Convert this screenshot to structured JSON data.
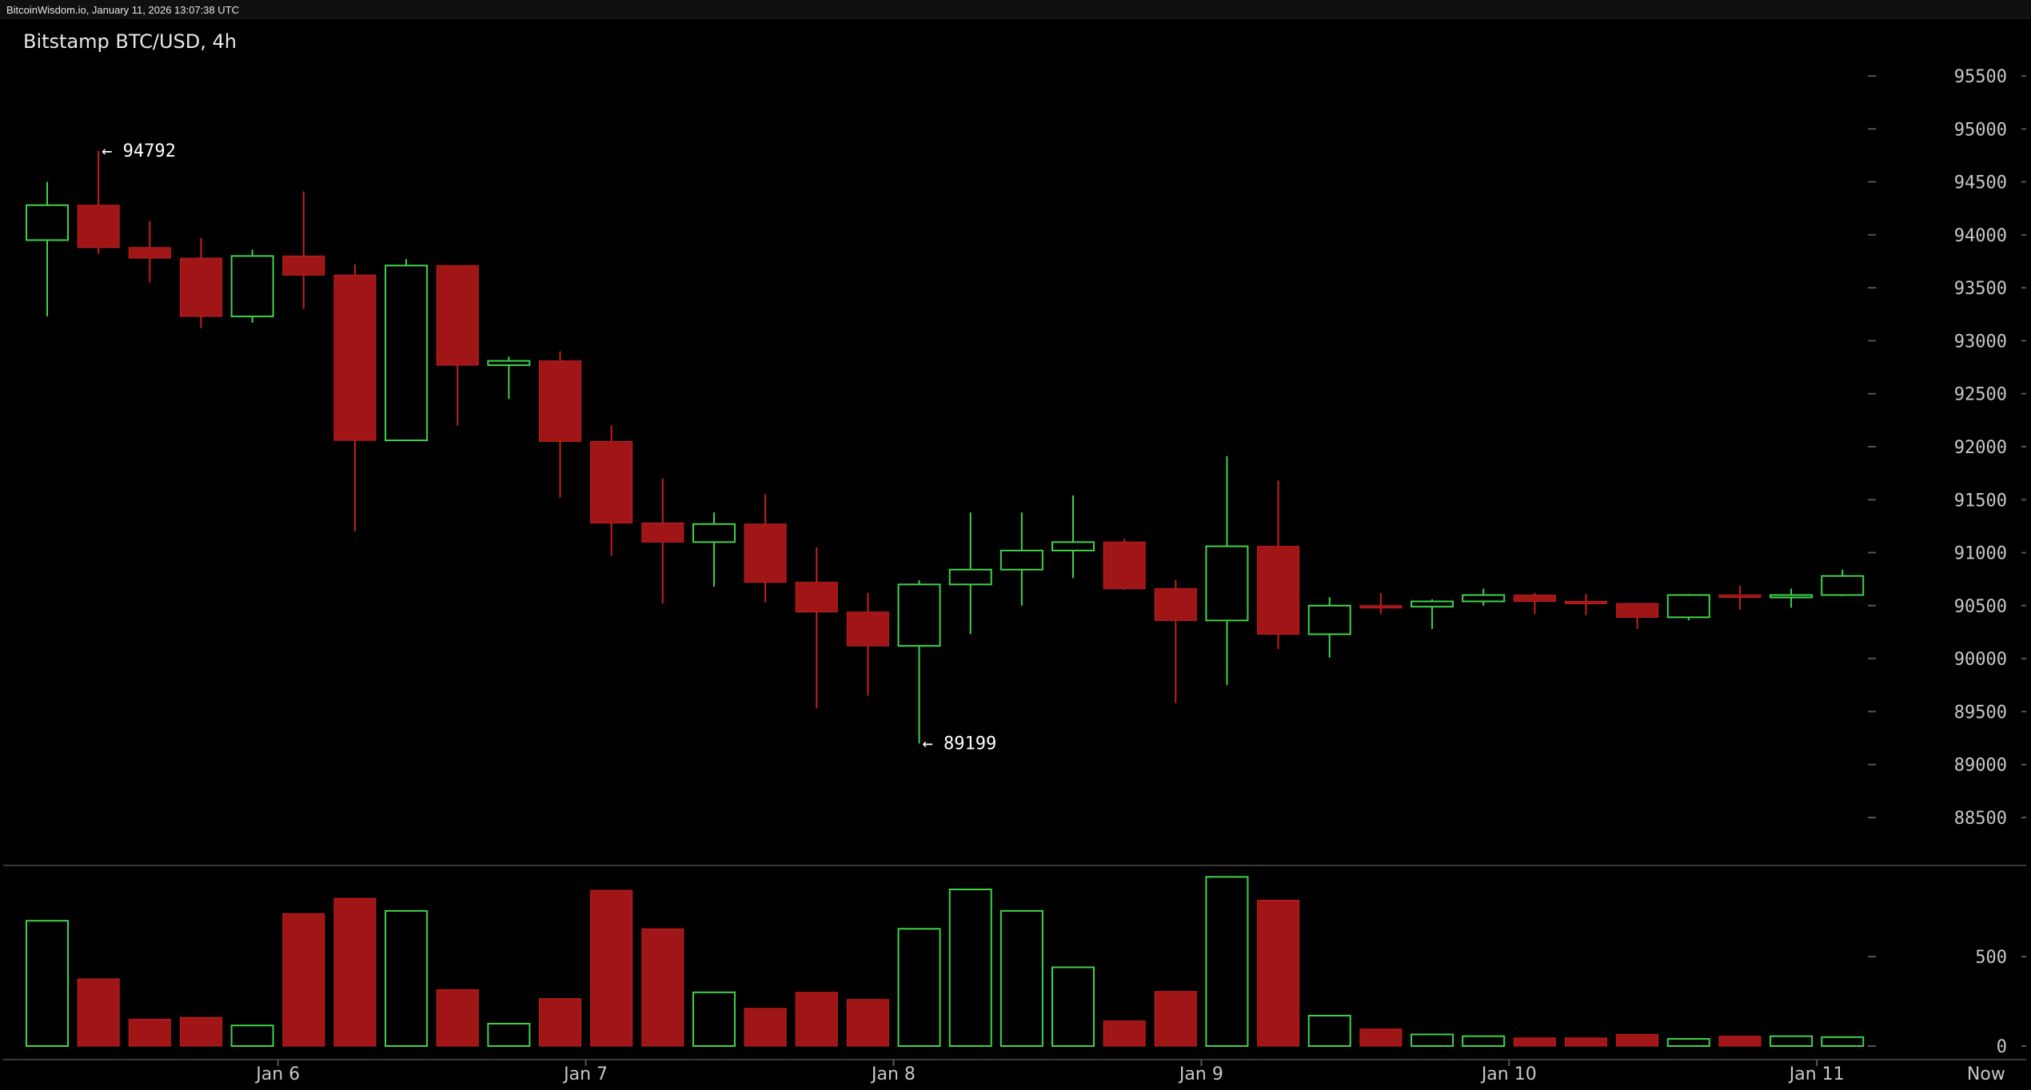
{
  "header": {
    "source_line": "BitcoinWisdom.io, January 11, 2026 13:07:38 UTC"
  },
  "chart_title": "Bitstamp BTC/USD, 4h",
  "colors": {
    "up": "#3fd24a",
    "down": "#a01515",
    "down_stroke": "#c42020",
    "grid": "#3a3a3a",
    "text": "#c8c8c8"
  },
  "chart_data": {
    "type": "candlestick",
    "title": "Bitstamp BTC/USD, 4h",
    "price_axis": {
      "ticks": [
        88500,
        89000,
        89500,
        90000,
        90500,
        91000,
        91500,
        92000,
        92500,
        93000,
        93500,
        94000,
        94500,
        95000,
        95500
      ],
      "ylim": [
        88000,
        95850
      ]
    },
    "volume_axis": {
      "ticks": [
        0,
        500
      ],
      "ylim": [
        0,
        960
      ]
    },
    "x_labels": [
      {
        "label": "Jan 6",
        "index": 4.5
      },
      {
        "label": "Jan 7",
        "index": 10.5
      },
      {
        "label": "Jan 8",
        "index": 16.5
      },
      {
        "label": "Jan 9",
        "index": 22.5
      },
      {
        "label": "Jan 10",
        "index": 28.5
      },
      {
        "label": "Jan 11",
        "index": 34.5
      },
      {
        "label": "Now",
        "index": 37.8
      }
    ],
    "annotations": [
      {
        "text": "← 94792",
        "index": 1,
        "price": 94792
      },
      {
        "text": "← 89199",
        "index": 17,
        "price": 89199
      }
    ],
    "candles": [
      {
        "o": 93950,
        "h": 94500,
        "l": 93230,
        "c": 94280,
        "v": 700
      },
      {
        "o": 94280,
        "h": 94792,
        "l": 93820,
        "c": 93880,
        "v": 375
      },
      {
        "o": 93880,
        "h": 94130,
        "l": 93550,
        "c": 93780,
        "v": 150
      },
      {
        "o": 93780,
        "h": 93970,
        "l": 93120,
        "c": 93230,
        "v": 160
      },
      {
        "o": 93230,
        "h": 93860,
        "l": 93170,
        "c": 93800,
        "v": 115
      },
      {
        "o": 93800,
        "h": 94410,
        "l": 93300,
        "c": 93620,
        "v": 740
      },
      {
        "o": 93620,
        "h": 93720,
        "l": 91200,
        "c": 92060,
        "v": 825
      },
      {
        "o": 92060,
        "h": 93770,
        "l": 92060,
        "c": 93710,
        "v": 755
      },
      {
        "o": 93710,
        "h": 93710,
        "l": 92200,
        "c": 92770,
        "v": 315
      },
      {
        "o": 92770,
        "h": 92850,
        "l": 92450,
        "c": 92810,
        "v": 125
      },
      {
        "o": 92810,
        "h": 92900,
        "l": 91520,
        "c": 92050,
        "v": 265
      },
      {
        "o": 92050,
        "h": 92200,
        "l": 90970,
        "c": 91280,
        "v": 870
      },
      {
        "o": 91280,
        "h": 91700,
        "l": 90520,
        "c": 91100,
        "v": 655
      },
      {
        "o": 91100,
        "h": 91380,
        "l": 90680,
        "c": 91270,
        "v": 300
      },
      {
        "o": 91270,
        "h": 91550,
        "l": 90530,
        "c": 90720,
        "v": 210
      },
      {
        "o": 90720,
        "h": 91050,
        "l": 89530,
        "c": 90440,
        "v": 300
      },
      {
        "o": 90440,
        "h": 90620,
        "l": 89650,
        "c": 90120,
        "v": 260
      },
      {
        "o": 90120,
        "h": 90740,
        "l": 89199,
        "c": 90700,
        "v": 655
      },
      {
        "o": 90700,
        "h": 91380,
        "l": 90230,
        "c": 90840,
        "v": 875
      },
      {
        "o": 90840,
        "h": 91380,
        "l": 90500,
        "c": 91020,
        "v": 755
      },
      {
        "o": 91020,
        "h": 91540,
        "l": 90760,
        "c": 91100,
        "v": 440
      },
      {
        "o": 91100,
        "h": 91130,
        "l": 90650,
        "c": 90660,
        "v": 140
      },
      {
        "o": 90660,
        "h": 90740,
        "l": 89580,
        "c": 90360,
        "v": 305
      },
      {
        "o": 90360,
        "h": 91910,
        "l": 89750,
        "c": 91060,
        "v": 945
      },
      {
        "o": 91060,
        "h": 91680,
        "l": 90090,
        "c": 90230,
        "v": 815
      },
      {
        "o": 90230,
        "h": 90580,
        "l": 90010,
        "c": 90500,
        "v": 170
      },
      {
        "o": 90500,
        "h": 90620,
        "l": 90420,
        "c": 90490,
        "v": 95
      },
      {
        "o": 90490,
        "h": 90560,
        "l": 90280,
        "c": 90540,
        "v": 65
      },
      {
        "o": 90540,
        "h": 90660,
        "l": 90500,
        "c": 90600,
        "v": 55
      },
      {
        "o": 90600,
        "h": 90620,
        "l": 90420,
        "c": 90540,
        "v": 45
      },
      {
        "o": 90540,
        "h": 90610,
        "l": 90410,
        "c": 90520,
        "v": 45
      },
      {
        "o": 90520,
        "h": 90520,
        "l": 90280,
        "c": 90390,
        "v": 65
      },
      {
        "o": 90390,
        "h": 90610,
        "l": 90360,
        "c": 90600,
        "v": 40
      },
      {
        "o": 90600,
        "h": 90690,
        "l": 90460,
        "c": 90590,
        "v": 55
      },
      {
        "o": 90590,
        "h": 90660,
        "l": 90480,
        "c": 90600,
        "v": 55
      },
      {
        "o": 90600,
        "h": 90840,
        "l": 90590,
        "c": 90780,
        "v": 50
      }
    ]
  }
}
